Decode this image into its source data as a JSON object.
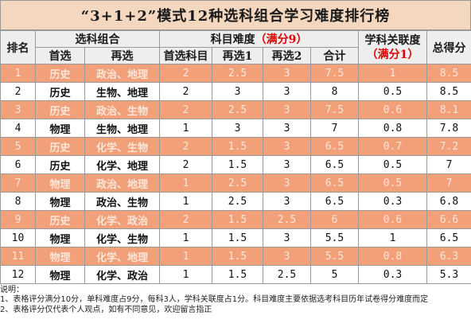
{
  "title": "“3+1+2”模式12种选科组合学习难度排行榜",
  "headers": {
    "rank": "排名",
    "combo": "选科组合",
    "first_choice": "首选",
    "second_choice": "再选",
    "difficulty": "科目难度",
    "difficulty_max": "（满分9）",
    "diff_first": "首选科目",
    "diff_r1": "再选1",
    "diff_r2": "再选2",
    "diff_total": "合计",
    "relevance": "学科关联度",
    "relevance_max": "（满分1）",
    "total_score": "总得分"
  },
  "rows": [
    {
      "rank": "1",
      "first": "历史",
      "second": "政治、地理",
      "d1": "2",
      "d2": "2.5",
      "d3": "3",
      "sum": "7.5",
      "rel": "1",
      "total": "8.5"
    },
    {
      "rank": "2",
      "first": "历史",
      "second": "生物、地理",
      "d1": "2",
      "d2": "3",
      "d3": "3",
      "sum": "8",
      "rel": "0.5",
      "total": "8.5"
    },
    {
      "rank": "3",
      "first": "历史",
      "second": "政治、生物",
      "d1": "2",
      "d2": "2.5",
      "d3": "3",
      "sum": "7.5",
      "rel": "0.6",
      "total": "8.1"
    },
    {
      "rank": "4",
      "first": "物理",
      "second": "生物、地理",
      "d1": "1",
      "d2": "3",
      "d3": "3",
      "sum": "7",
      "rel": "0.8",
      "total": "7.8"
    },
    {
      "rank": "5",
      "first": "历史",
      "second": "化学、生物",
      "d1": "2",
      "d2": "1.5",
      "d3": "3",
      "sum": "6.5",
      "rel": "0.7",
      "total": "7.2"
    },
    {
      "rank": "6",
      "first": "历史",
      "second": "化学、地理",
      "d1": "2",
      "d2": "1.5",
      "d3": "3",
      "sum": "6.5",
      "rel": "0.5",
      "total": "7"
    },
    {
      "rank": "7",
      "first": "物理",
      "second": "政治、地理",
      "d1": "1",
      "d2": "2.5",
      "d3": "3",
      "sum": "6.5",
      "rel": "0.5",
      "total": "7"
    },
    {
      "rank": "8",
      "first": "物理",
      "second": "政治、生物",
      "d1": "1",
      "d2": "2.5",
      "d3": "3",
      "sum": "6.5",
      "rel": "0.3",
      "total": "6.8"
    },
    {
      "rank": "9",
      "first": "历史",
      "second": "化学、政治",
      "d1": "2",
      "d2": "1.5",
      "d3": "2.5",
      "sum": "6",
      "rel": "0.6",
      "total": "6.6"
    },
    {
      "rank": "10",
      "first": "物理",
      "second": "化学、生物",
      "d1": "1",
      "d2": "1.5",
      "d3": "3",
      "sum": "5.5",
      "rel": "1",
      "total": "6.5"
    },
    {
      "rank": "11",
      "first": "物理",
      "second": "化学、地理",
      "d1": "1",
      "d2": "1.5",
      "d3": "3",
      "sum": "5.5",
      "rel": "0.8",
      "total": "6.3"
    },
    {
      "rank": "12",
      "first": "物理",
      "second": "化学、政治",
      "d1": "1",
      "d2": "1.5",
      "d3": "2.5",
      "sum": "5",
      "rel": "0.3",
      "total": "5.3"
    }
  ],
  "notes": {
    "heading": "说明：",
    "line1": "1、表格评分满分10分，单科难度占9分，每科3人，学科关联度占1分。科目难度主要依据选考科目历年试卷得分难度而定",
    "line2": "2、表格评分仅代表个人观点，如有不同意见，欢迎留言指正"
  },
  "colors": {
    "title_bg": "#f4d7bf",
    "header_bg": "#eeeeee",
    "odd_row_bg": "#f2a07a",
    "odd_row_text": "#fbe6d8",
    "accent_red": "#e00000"
  }
}
